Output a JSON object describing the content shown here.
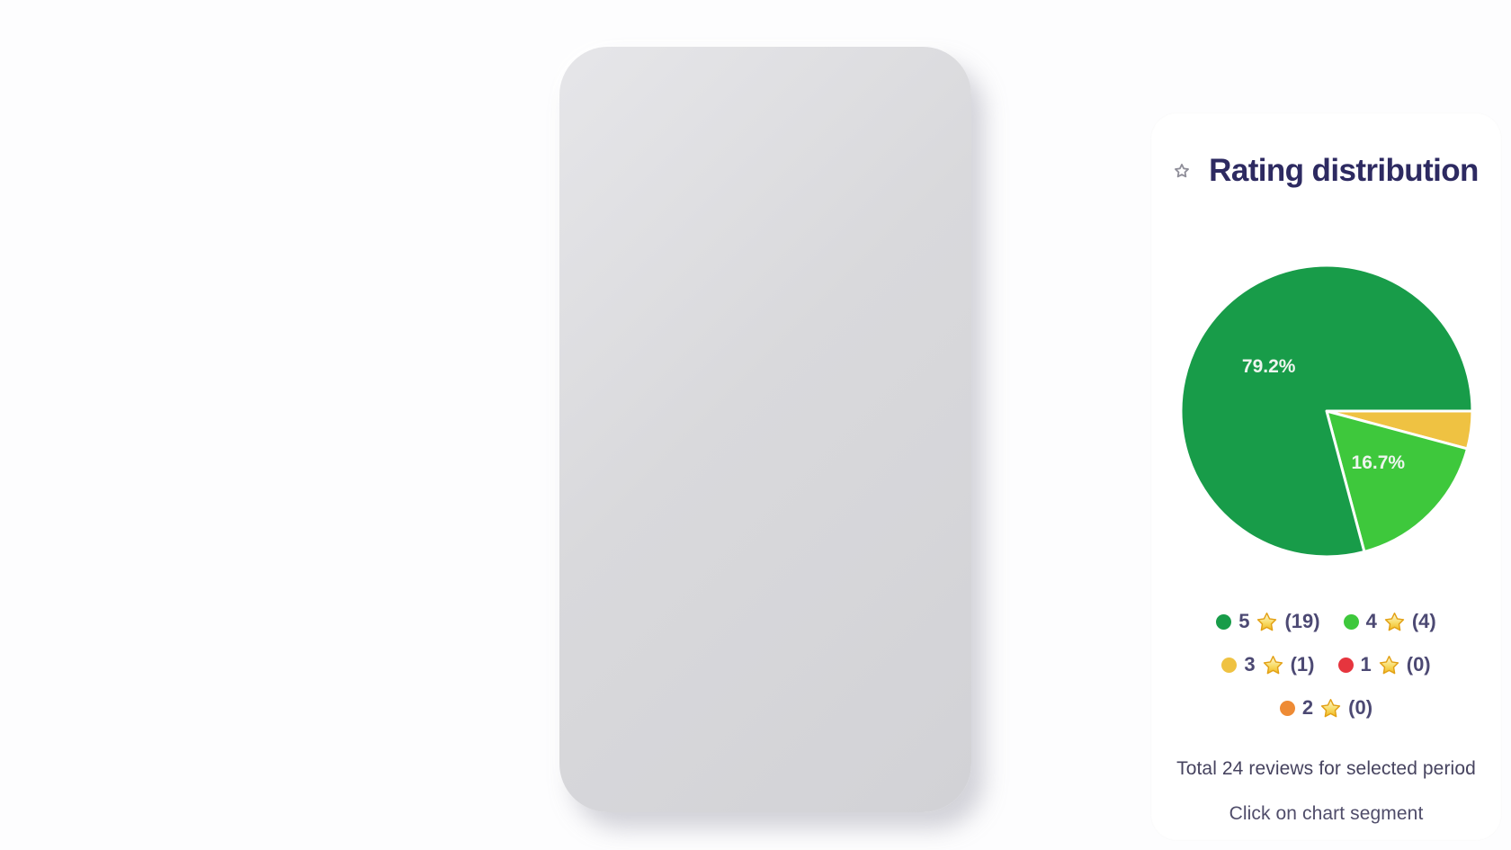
{
  "card": {
    "title": "Rating distribution",
    "total_text": "Total 24 reviews for selected period",
    "hint_text": "Click on chart segment"
  },
  "icons": {
    "header": "star-outline-icon",
    "legend": "gold-star-icon"
  },
  "colors": {
    "page_bg": "#fdfdfe",
    "frame": "#d8d8db",
    "card_bg": "#ffffff",
    "title_text": "#2d2a61",
    "legend_text": "#4c4973",
    "footer_text": "#46435f",
    "slice_label_text": "#eef5ef"
  },
  "chart_data": {
    "type": "pie",
    "title": "Rating distribution",
    "total_reviews": 24,
    "legend_position": "bottom",
    "start_angle_deg": 0,
    "direction": "clockwise",
    "slices": [
      {
        "stars": "5",
        "count": 19,
        "count_label": "(19)",
        "pct": 79.2,
        "pct_label": "79.2%",
        "color": "#189c49"
      },
      {
        "stars": "4",
        "count": 4,
        "count_label": "(4)",
        "pct": 16.7,
        "pct_label": "16.7%",
        "color": "#3ec83c"
      },
      {
        "stars": "3",
        "count": 1,
        "count_label": "(1)",
        "pct": 4.2,
        "pct_label": "",
        "color": "#efc242"
      },
      {
        "stars": "1",
        "count": 0,
        "count_label": "(0)",
        "pct": 0,
        "pct_label": "",
        "color": "#e6353e"
      },
      {
        "stars": "2",
        "count": 0,
        "count_label": "(0)",
        "pct": 0,
        "pct_label": "",
        "color": "#ee8b35"
      }
    ]
  }
}
